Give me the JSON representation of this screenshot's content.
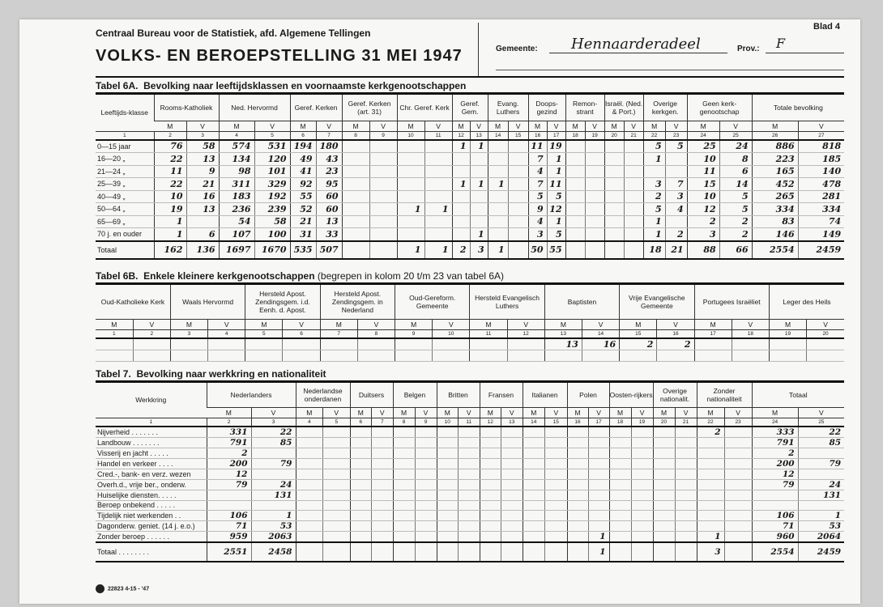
{
  "header": {
    "organisation": "Centraal Bureau voor de Statistiek, afd. Algemene Tellingen",
    "title": "VOLKS- EN BEROEPSTELLING 31 MEI 1947",
    "sheet": "Blad 4",
    "gemeente_label": "Gemeente:",
    "gemeente_value": "Hennaarderadeel",
    "prov_label": "Prov.:",
    "prov_value": "F"
  },
  "table6a": {
    "title": "Tabel 6A.",
    "subtitle": "Bevolking naar leeftijdsklassen en voornaamste kerkgenootschappen",
    "label_header": "Leeftijds-klasse",
    "groups": [
      "Rooms-Katholiek",
      "Ned. Hervormd",
      "Geref. Kerken",
      "Geref. Kerken (art. 31)",
      "Chr. Geref. Kerk",
      "Geref. Gem.",
      "Evang. Luthers",
      "Doops-gezind",
      "Remon-strant",
      "Israël. (Ned. & Port.)",
      "Overige kerkgen.",
      "Geen kerk-genootschap",
      "Totale bevolking"
    ],
    "sex": [
      "M",
      "V"
    ],
    "col_numbers": [
      "1",
      "2",
      "3",
      "4",
      "5",
      "6",
      "7",
      "8",
      "9",
      "10",
      "11",
      "12",
      "13",
      "14",
      "15",
      "16",
      "17",
      "18",
      "19",
      "20",
      "21",
      "22",
      "23",
      "24",
      "25",
      "26",
      "27"
    ],
    "rows": [
      {
        "label": "0—15 jaar",
        "values": [
          "76",
          "58",
          "574",
          "531",
          "194",
          "180",
          "",
          "",
          "",
          "",
          "1",
          "1",
          "",
          "",
          "11",
          "19",
          "",
          "",
          "",
          "",
          "5",
          "5",
          "25",
          "24",
          "886",
          "818"
        ]
      },
      {
        "label": "16—20 „",
        "values": [
          "22",
          "13",
          "134",
          "120",
          "49",
          "43",
          "",
          "",
          "",
          "",
          "",
          "",
          "",
          "",
          "7",
          "1",
          "",
          "",
          "",
          "",
          "1",
          "",
          "10",
          "8",
          "223",
          "185"
        ]
      },
      {
        "label": "21—24 „",
        "values": [
          "11",
          "9",
          "98",
          "101",
          "41",
          "23",
          "",
          "",
          "",
          "",
          "",
          "",
          "",
          "",
          "4",
          "1",
          "",
          "",
          "",
          "",
          "",
          "",
          "11",
          "6",
          "165",
          "140"
        ]
      },
      {
        "label": "25—39 „",
        "values": [
          "22",
          "21",
          "311",
          "329",
          "92",
          "95",
          "",
          "",
          "",
          "",
          "1",
          "1",
          "1",
          "",
          "7",
          "11",
          "",
          "",
          "",
          "",
          "3",
          "7",
          "15",
          "14",
          "452",
          "478"
        ]
      },
      {
        "label": "40—49 „",
        "values": [
          "10",
          "16",
          "183",
          "192",
          "55",
          "60",
          "",
          "",
          "",
          "",
          "",
          "",
          "",
          "",
          "5",
          "5",
          "",
          "",
          "",
          "",
          "2",
          "3",
          "10",
          "5",
          "265",
          "281"
        ]
      },
      {
        "label": "50—64 „",
        "values": [
          "19",
          "13",
          "236",
          "239",
          "52",
          "60",
          "",
          "",
          "1",
          "1",
          "",
          "",
          "",
          "",
          "9",
          "12",
          "",
          "",
          "",
          "",
          "5",
          "4",
          "12",
          "5",
          "334",
          "334"
        ]
      },
      {
        "label": "65—69 „",
        "values": [
          "1",
          "",
          "54",
          "58",
          "21",
          "13",
          "",
          "",
          "",
          "",
          "",
          "",
          "",
          "",
          "4",
          "1",
          "",
          "",
          "",
          "",
          "1",
          "",
          "2",
          "2",
          "83",
          "74"
        ]
      },
      {
        "label": "70 j. en ouder",
        "values": [
          "1",
          "6",
          "107",
          "100",
          "31",
          "33",
          "",
          "",
          "",
          "",
          "",
          "1",
          "",
          "",
          "3",
          "5",
          "",
          "",
          "",
          "",
          "1",
          "2",
          "3",
          "2",
          "146",
          "149"
        ]
      }
    ],
    "total": {
      "label": "Totaal",
      "values": [
        "162",
        "136",
        "1697",
        "1670",
        "535",
        "507",
        "",
        "",
        "1",
        "1",
        "2",
        "3",
        "1",
        "",
        "50",
        "55",
        "",
        "",
        "",
        "",
        "18",
        "21",
        "88",
        "66",
        "2554",
        "2459"
      ]
    }
  },
  "table6b": {
    "title": "Tabel 6B.",
    "subtitle": "Enkele kleinere kerkgenootschappen",
    "note": "(begrepen in kolom 20 t/m 23 van tabel 6A)",
    "groups": [
      "Oud-Katholieke Kerk",
      "Waals Hervormd",
      "Hersteld Apost. Zendingsgem. i.d. Eenh. d. Apost.",
      "Hersteld Apost. Zendingsgem. in Nederland",
      "Oud-Gereform. Gemeente",
      "Hersteld Evangelisch Luthers",
      "Baptisten",
      "Vrije Evangelische Gemeente",
      "Portugees Israëliet",
      "Leger des Heils"
    ],
    "col_numbers": [
      "1",
      "2",
      "3",
      "4",
      "5",
      "6",
      "7",
      "8",
      "9",
      "10",
      "11",
      "12",
      "13",
      "14",
      "15",
      "16",
      "17",
      "18",
      "19",
      "20"
    ],
    "rows": [
      {
        "values": [
          "",
          "",
          "",
          "",
          "",
          "",
          "",
          "",
          "",
          "",
          "",
          "",
          "13",
          "16",
          "2",
          "2",
          "",
          "",
          "",
          ""
        ]
      },
      {
        "values": [
          "",
          "",
          "",
          "",
          "",
          "",
          "",
          "",
          "",
          "",
          "",
          "",
          "",
          "",
          "",
          "",
          "",
          "",
          "",
          ""
        ]
      }
    ]
  },
  "table7": {
    "title": "Tabel 7.",
    "subtitle": "Bevolking naar werkkring en nationaliteit",
    "label_header": "Werkkring",
    "groups": [
      "Nederlanders",
      "Nederlandse onderdanen",
      "Duitsers",
      "Belgen",
      "Britten",
      "Fransen",
      "Italianen",
      "Polen",
      "Oosten-rijkers",
      "Overige nationalit.",
      "Zonder nationaliteit",
      "Totaal"
    ],
    "col_numbers": [
      "1",
      "2",
      "3",
      "4",
      "5",
      "6",
      "7",
      "8",
      "9",
      "10",
      "11",
      "12",
      "13",
      "14",
      "15",
      "16",
      "17",
      "18",
      "19",
      "20",
      "21",
      "22",
      "23",
      "24",
      "25"
    ],
    "rows": [
      {
        "label": "Nijverheid . . . . . . .",
        "values": [
          "331",
          "22",
          "",
          "",
          "",
          "",
          "",
          "",
          "",
          "",
          "",
          "",
          "",
          "",
          "",
          "",
          "",
          "",
          "",
          "",
          "2",
          "",
          "333",
          "22"
        ]
      },
      {
        "label": "Landbouw . . . . . . .",
        "values": [
          "791",
          "85",
          "",
          "",
          "",
          "",
          "",
          "",
          "",
          "",
          "",
          "",
          "",
          "",
          "",
          "",
          "",
          "",
          "",
          "",
          "",
          "",
          "791",
          "85"
        ]
      },
      {
        "label": "Visserij en jacht . . . . .",
        "values": [
          "2",
          "",
          "",
          "",
          "",
          "",
          "",
          "",
          "",
          "",
          "",
          "",
          "",
          "",
          "",
          "",
          "",
          "",
          "",
          "",
          "",
          "",
          "2",
          ""
        ]
      },
      {
        "label": "Handel en verkeer . . . .",
        "values": [
          "200",
          "79",
          "",
          "",
          "",
          "",
          "",
          "",
          "",
          "",
          "",
          "",
          "",
          "",
          "",
          "",
          "",
          "",
          "",
          "",
          "",
          "",
          "200",
          "79"
        ]
      },
      {
        "label": "Cred.-, bank- en verz. wezen",
        "values": [
          "12",
          "",
          "",
          "",
          "",
          "",
          "",
          "",
          "",
          "",
          "",
          "",
          "",
          "",
          "",
          "",
          "",
          "",
          "",
          "",
          "",
          "",
          "12",
          ""
        ]
      },
      {
        "label": "Overh.d., vrije ber., onderw.",
        "values": [
          "79",
          "24",
          "",
          "",
          "",
          "",
          "",
          "",
          "",
          "",
          "",
          "",
          "",
          "",
          "",
          "",
          "",
          "",
          "",
          "",
          "",
          "",
          "79",
          "24"
        ]
      },
      {
        "label": "Huiselijke diensten. . . . .",
        "values": [
          "",
          "131",
          "",
          "",
          "",
          "",
          "",
          "",
          "",
          "",
          "",
          "",
          "",
          "",
          "",
          "",
          "",
          "",
          "",
          "",
          "",
          "",
          "",
          "131"
        ]
      },
      {
        "label": "Beroep onbekend . . . . .",
        "values": [
          "",
          "",
          "",
          "",
          "",
          "",
          "",
          "",
          "",
          "",
          "",
          "",
          "",
          "",
          "",
          "",
          "",
          "",
          "",
          "",
          "",
          "",
          "",
          ""
        ]
      },
      {
        "label": "Tijdelijk niet werkenden . .",
        "values": [
          "106",
          "1",
          "",
          "",
          "",
          "",
          "",
          "",
          "",
          "",
          "",
          "",
          "",
          "",
          "",
          "",
          "",
          "",
          "",
          "",
          "",
          "",
          "106",
          "1"
        ]
      },
      {
        "label": "Dagonderw. geniet. (14 j. e.o.)",
        "values": [
          "71",
          "53",
          "",
          "",
          "",
          "",
          "",
          "",
          "",
          "",
          "",
          "",
          "",
          "",
          "",
          "",
          "",
          "",
          "",
          "",
          "",
          "",
          "71",
          "53"
        ]
      },
      {
        "label": "Zonder beroep . . . . . .",
        "values": [
          "959",
          "2063",
          "",
          "",
          "",
          "",
          "",
          "",
          "",
          "",
          "",
          "",
          "",
          "",
          "",
          "1",
          "",
          "",
          "",
          "",
          "1",
          "",
          "960",
          "2064"
        ]
      }
    ],
    "total": {
      "label": "Totaal . . . . . . . .",
      "values": [
        "2551",
        "2458",
        "",
        "",
        "",
        "",
        "",
        "",
        "",
        "",
        "",
        "",
        "",
        "",
        "",
        "1",
        "",
        "",
        "",
        "",
        "3",
        "",
        "2554",
        "2459"
      ]
    }
  },
  "footer": {
    "print_code": "22823 4-15 - '47"
  }
}
